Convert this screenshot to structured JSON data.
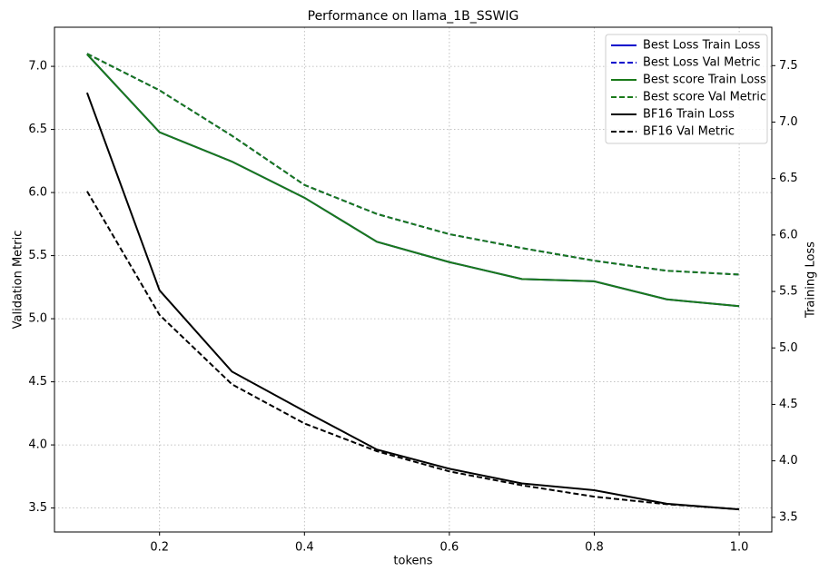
{
  "chart_data": {
    "type": "line",
    "title": "Performance on llama_1B_SSWIG",
    "xlabel": "tokens",
    "ylabel": "Validation Metric",
    "y2label": "Training Loss",
    "x": [
      0.1,
      0.2,
      0.3,
      0.4,
      0.5,
      0.6,
      0.7,
      0.8,
      0.9,
      1.0
    ],
    "xlim": [
      0.055,
      1.045
    ],
    "xticks": [
      0.2,
      0.4,
      0.6,
      0.8,
      {
        "value": 1.0,
        "label": "1.0"
      }
    ],
    "ylim": [
      3.31,
      7.31
    ],
    "yticks": [
      3.5,
      {
        "value": 4.0,
        "label": "4.0"
      },
      4.5,
      {
        "value": 5.0,
        "label": "5.0"
      },
      5.5,
      {
        "value": 6.0,
        "label": "6.0"
      },
      6.5,
      {
        "value": 7.0,
        "label": "7.0"
      }
    ],
    "y2lim": [
      3.37,
      7.84
    ],
    "y2ticks": [
      3.5,
      {
        "value": 4.0,
        "label": "4.0"
      },
      4.5,
      {
        "value": 5.0,
        "label": "5.0"
      },
      5.5,
      {
        "value": 6.0,
        "label": "6.0"
      },
      6.5,
      {
        "value": 7.0,
        "label": "7.0"
      },
      7.5
    ],
    "grid": true,
    "legend": "upper right",
    "series": [
      {
        "name": "Best Loss Train Loss",
        "color": "#0000cc",
        "dash": false,
        "axis": "y2",
        "values": [
          7.6,
          6.91,
          6.65,
          6.33,
          5.94,
          5.76,
          5.61,
          5.59,
          5.43,
          5.37
        ]
      },
      {
        "name": "Best Loss Val Metric",
        "color": "#0000cc",
        "dash": true,
        "values": [
          7.1,
          6.81,
          6.45,
          6.06,
          5.83,
          5.67,
          5.56,
          5.46,
          5.38,
          5.35
        ]
      },
      {
        "name": "Best score Train Loss",
        "color": "#1a7a1a",
        "dash": false,
        "axis": "y2",
        "values": [
          7.6,
          6.91,
          6.65,
          6.33,
          5.94,
          5.76,
          5.61,
          5.59,
          5.43,
          5.37
        ]
      },
      {
        "name": "Best score Val Metric",
        "color": "#1a7a1a",
        "dash": true,
        "values": [
          7.1,
          6.81,
          6.45,
          6.06,
          5.83,
          5.67,
          5.56,
          5.46,
          5.38,
          5.35
        ]
      },
      {
        "name": "BF16 Train Loss",
        "color": "#000000",
        "dash": false,
        "axis": "y2",
        "values": [
          7.26,
          5.51,
          4.79,
          4.44,
          4.1,
          3.93,
          3.8,
          3.74,
          3.62,
          3.57
        ]
      },
      {
        "name": "BF16 Val Metric",
        "color": "#000000",
        "dash": true,
        "values": [
          6.01,
          5.03,
          4.48,
          4.17,
          3.95,
          3.79,
          3.68,
          3.59,
          3.53,
          3.49
        ]
      }
    ]
  }
}
